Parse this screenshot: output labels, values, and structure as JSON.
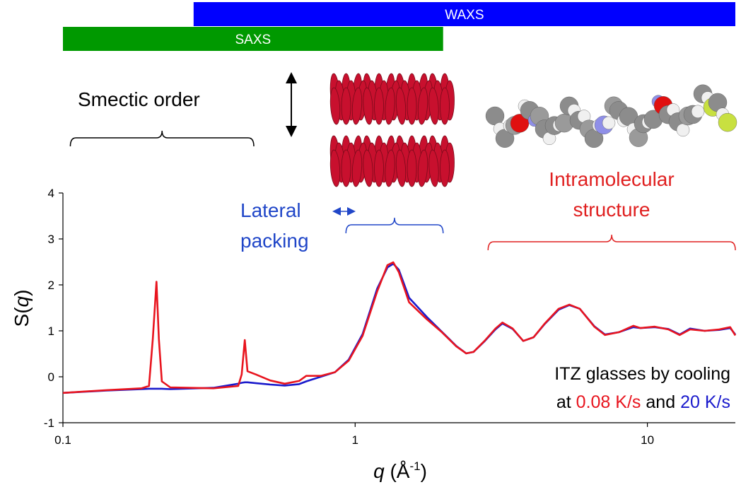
{
  "chart_data": {
    "type": "line",
    "x_scale": "log",
    "xlim": [
      0.1,
      20
    ],
    "xticks": [
      0.1,
      1,
      10
    ],
    "ylim": [
      -1,
      4
    ],
    "yticks": [
      -1,
      0,
      1,
      2,
      3,
      4
    ],
    "xlabel_parts": [
      "q",
      " (Å",
      "-1",
      ")"
    ],
    "ylabel_parts": [
      "S(",
      "q",
      ")"
    ],
    "x": [
      0.1,
      0.141,
      0.186,
      0.197,
      0.203,
      0.209,
      0.213,
      0.218,
      0.233,
      0.327,
      0.398,
      0.409,
      0.419,
      0.428,
      0.458,
      0.512,
      0.574,
      0.643,
      0.68,
      0.762,
      0.853,
      0.95,
      1.06,
      1.19,
      1.29,
      1.35,
      1.41,
      1.53,
      1.76,
      1.98,
      2.22,
      2.4,
      2.54,
      2.77,
      3.02,
      3.19,
      3.46,
      3.76,
      4.08,
      4.44,
      4.97,
      5.41,
      5.87,
      6.58,
      7.16,
      8.0,
      8.95,
      9.47,
      10.6,
      11.8,
      12.9,
      14.0,
      15.7,
      17.6,
      19.2,
      20.0
    ],
    "series": [
      {
        "name": "0.08 K/s",
        "color": "#e8141e",
        "values": [
          -0.35,
          -0.29,
          -0.25,
          -0.2,
          0.82,
          2.07,
          0.82,
          -0.1,
          -0.23,
          -0.25,
          -0.2,
          0.05,
          0.8,
          0.12,
          0.05,
          -0.08,
          -0.15,
          -0.09,
          0.02,
          0.02,
          0.1,
          0.35,
          0.89,
          1.86,
          2.43,
          2.49,
          2.28,
          1.62,
          1.25,
          0.97,
          0.66,
          0.51,
          0.54,
          0.78,
          1.05,
          1.18,
          1.05,
          0.78,
          0.86,
          1.15,
          1.48,
          1.57,
          1.48,
          1.09,
          0.91,
          0.97,
          1.11,
          1.06,
          1.09,
          1.03,
          0.91,
          1.03,
          1.0,
          1.03,
          1.08,
          0.9
        ]
      },
      {
        "name": "20 K/s",
        "color": "#1a1acc",
        "values": [
          -0.35,
          -0.3,
          -0.27,
          -0.26,
          -0.26,
          -0.26,
          -0.26,
          -0.26,
          -0.27,
          -0.24,
          -0.15,
          -0.13,
          -0.12,
          -0.12,
          -0.14,
          -0.17,
          -0.19,
          -0.16,
          -0.1,
          0.0,
          0.1,
          0.37,
          0.93,
          1.92,
          2.38,
          2.46,
          2.33,
          1.72,
          1.3,
          0.98,
          0.67,
          0.51,
          0.54,
          0.77,
          1.03,
          1.16,
          1.04,
          0.78,
          0.86,
          1.14,
          1.46,
          1.56,
          1.48,
          1.1,
          0.92,
          0.97,
          1.08,
          1.06,
          1.08,
          1.04,
          0.92,
          1.05,
          1.0,
          1.02,
          1.06,
          0.92
        ]
      }
    ],
    "ranges": [
      {
        "label": "WAXS",
        "range": [
          0.28,
          20
        ],
        "color": "#0000ff"
      },
      {
        "label": "SAXS",
        "range": [
          0.1,
          2
        ],
        "color": "#009900"
      }
    ],
    "annotations": [
      {
        "lines": [
          "Smectic order"
        ],
        "range": [
          0.106,
          0.45
        ],
        "color": "#000000"
      },
      {
        "lines": [
          "Lateral",
          "packing"
        ],
        "range": [
          0.93,
          2
        ],
        "color": "#2046c8"
      },
      {
        "lines": [
          "Intramolecular",
          "structure"
        ],
        "range": [
          2.85,
          20
        ],
        "color": "#e02020"
      }
    ],
    "caption": {
      "line1": "ITZ glasses by cooling",
      "at": "at",
      "and": "and"
    }
  }
}
